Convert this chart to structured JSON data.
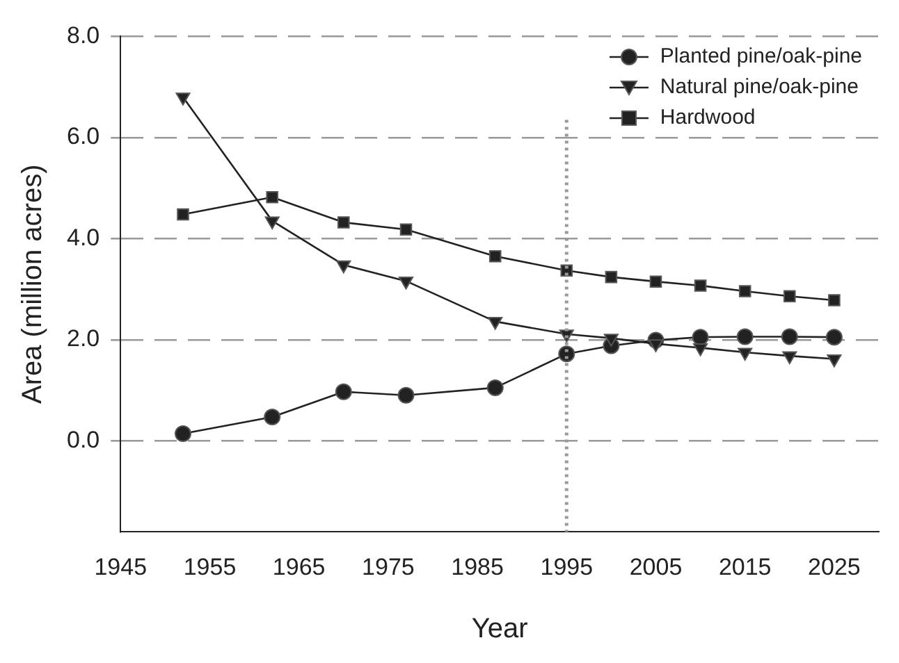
{
  "chart_data": {
    "type": "line",
    "xlabel": "Year",
    "ylabel": "Area (million acres)",
    "x": [
      1952,
      1962,
      1970,
      1977,
      1987,
      1995,
      2000,
      2005,
      2010,
      2015,
      2020,
      2025
    ],
    "series": [
      {
        "name": "Planted pine/oak-pine",
        "color": "#222222",
        "marker": "circle",
        "values": [
          0.14,
          0.47,
          0.97,
          0.9,
          1.05,
          1.72,
          1.88,
          1.99,
          2.05,
          2.06,
          2.06,
          2.05
        ]
      },
      {
        "name": "Natural pine/oak-pine",
        "color": "#222222",
        "marker": "triangle",
        "values": [
          6.8,
          4.35,
          3.48,
          3.16,
          2.36,
          2.11,
          2.03,
          1.92,
          1.84,
          1.75,
          1.68,
          1.62
        ]
      },
      {
        "name": "Hardwood",
        "color": "#222222",
        "marker": "square",
        "values": [
          4.48,
          4.82,
          4.32,
          4.18,
          3.65,
          3.37,
          3.24,
          3.15,
          3.07,
          2.96,
          2.86,
          2.78
        ]
      }
    ],
    "xlim": [
      1945,
      2030
    ],
    "xticks": [
      1945,
      1955,
      1965,
      1975,
      1985,
      1995,
      2005,
      2015,
      2025
    ],
    "ylim": [
      -1.8,
      8
    ],
    "yticks": [
      {
        "value": 0,
        "label": "0.0"
      },
      {
        "value": 2,
        "label": "2.0"
      },
      {
        "value": 4,
        "label": "4.0"
      },
      {
        "value": 6,
        "label": "6.0"
      },
      {
        "value": 8,
        "label": "8.0"
      }
    ],
    "grid": "y",
    "legend": "top right",
    "ref_lines": [
      {
        "axis": "x",
        "value": 1995,
        "color": "#999999",
        "line_style": "dotted"
      }
    ]
  }
}
